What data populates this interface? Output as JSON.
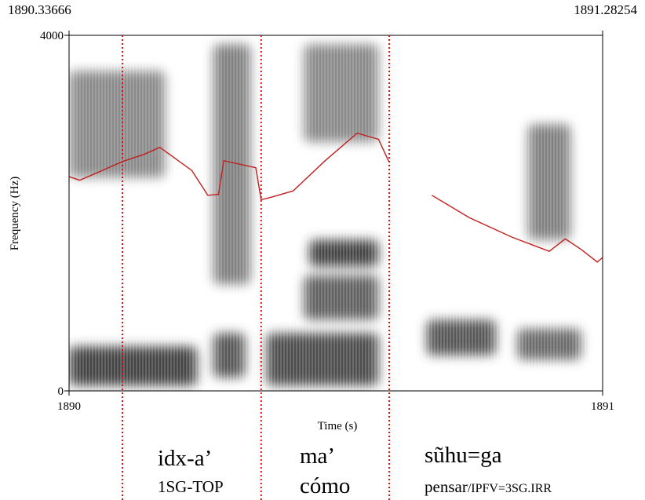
{
  "chart_data": {
    "type": "spectrogram",
    "time_window": {
      "start": "1890.33666",
      "end": "1891.28254"
    },
    "x": {
      "label": "Time (s)",
      "ticks": [
        "1890",
        "1891"
      ],
      "range": [
        1890,
        1891
      ]
    },
    "y": {
      "label": "Frequency (Hz)",
      "ticks": [
        "0",
        "4000"
      ],
      "range": [
        0,
        4000
      ]
    },
    "word_boundaries_s": [
      1890.1,
      1890.36,
      1890.6
    ],
    "pitch_track": {
      "color": "#c01f1f",
      "segments": [
        [
          [
            1890.0,
            2410
          ],
          [
            1890.02,
            2370
          ],
          [
            1890.07,
            2500
          ],
          [
            1890.1,
            2580
          ],
          [
            1890.14,
            2660
          ],
          [
            1890.17,
            2740
          ],
          [
            1890.23,
            2480
          ],
          [
            1890.26,
            2200
          ],
          [
            1890.28,
            2210
          ],
          [
            1890.29,
            2590
          ],
          [
            1890.35,
            2510
          ],
          [
            1890.36,
            2150
          ],
          [
            1890.38,
            2180
          ],
          [
            1890.42,
            2250
          ],
          [
            1890.48,
            2590
          ],
          [
            1890.54,
            2900
          ],
          [
            1890.58,
            2830
          ],
          [
            1890.6,
            2570
          ]
        ],
        [
          [
            1890.68,
            2200
          ],
          [
            1890.75,
            1950
          ],
          [
            1890.83,
            1730
          ],
          [
            1890.9,
            1570
          ],
          [
            1890.93,
            1710
          ],
          [
            1890.96,
            1590
          ],
          [
            1890.99,
            1450
          ],
          [
            1891.0,
            1500
          ]
        ]
      ]
    },
    "energy_bands": [
      {
        "t0": 1890.0,
        "t1": 1890.24,
        "f0": 60,
        "f1": 500,
        "level": 0.9
      },
      {
        "t0": 1890.27,
        "t1": 1890.33,
        "f0": 150,
        "f1": 650,
        "level": 0.8
      },
      {
        "t0": 1890.37,
        "t1": 1890.58,
        "f0": 60,
        "f1": 650,
        "level": 0.85
      },
      {
        "t0": 1890.45,
        "t1": 1890.58,
        "f0": 1400,
        "f1": 1700,
        "level": 0.9
      },
      {
        "t0": 1890.44,
        "t1": 1890.58,
        "f0": 800,
        "f1": 1300,
        "level": 0.75
      },
      {
        "t0": 1890.67,
        "t1": 1890.8,
        "f0": 400,
        "f1": 800,
        "level": 0.8
      },
      {
        "t0": 1890.84,
        "t1": 1890.96,
        "f0": 350,
        "f1": 700,
        "level": 0.7
      },
      {
        "t0": 1890.0,
        "t1": 1890.18,
        "f0": 2400,
        "f1": 3600,
        "level": 0.55
      },
      {
        "t0": 1890.27,
        "t1": 1890.34,
        "f0": 1200,
        "f1": 3900,
        "level": 0.6
      },
      {
        "t0": 1890.44,
        "t1": 1890.58,
        "f0": 2800,
        "f1": 3900,
        "level": 0.55
      },
      {
        "t0": 1890.86,
        "t1": 1890.94,
        "f0": 1700,
        "f1": 3000,
        "level": 0.6
      }
    ]
  },
  "gloss": {
    "words": [
      {
        "form": "idx-a’",
        "gloss_main": "1SG-TOP",
        "gloss_small": ""
      },
      {
        "form": "ma’",
        "gloss_main": "cómo",
        "gloss_small": ""
      },
      {
        "form": "sũhu=ga",
        "gloss_main": "pensar",
        "gloss_small": "/IPFV=3SG.IRR"
      }
    ]
  }
}
